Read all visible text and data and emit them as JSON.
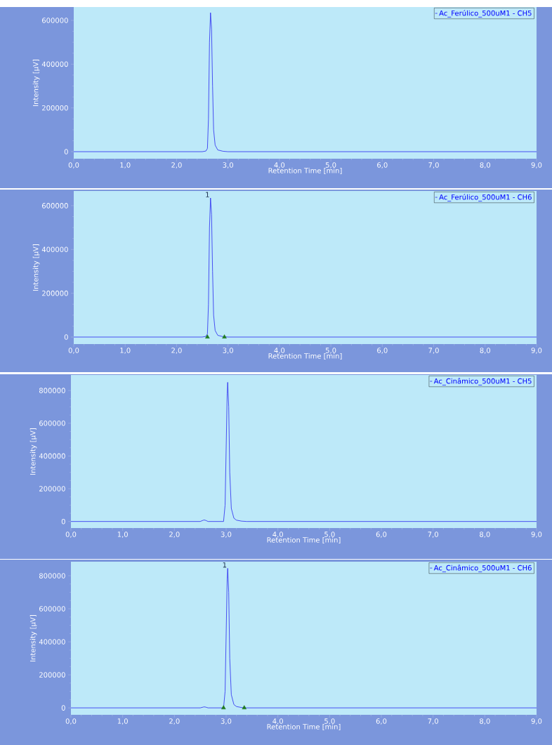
{
  "chart_data": [
    {
      "type": "line",
      "xlabel": "Retention Time [min]",
      "ylabel": "Intensity [µV]",
      "legend": "top right",
      "xlim": [
        0,
        9.0
      ],
      "ylim": [
        -32000,
        661000
      ],
      "xticks": [
        {
          "value": 0,
          "label": "0,0"
        },
        {
          "value": 1,
          "label": "1,0"
        },
        {
          "value": 2,
          "label": "2,0"
        },
        {
          "value": 3,
          "label": "3,0"
        },
        {
          "value": 4,
          "label": "4,0"
        },
        {
          "value": 5,
          "label": "5,0"
        },
        {
          "value": 6,
          "label": "6,0"
        },
        {
          "value": 7,
          "label": "7,0"
        },
        {
          "value": 8,
          "label": "8,0"
        },
        {
          "value": 9,
          "label": "9,0"
        }
      ],
      "yticks": [
        0,
        200000,
        400000,
        600000
      ],
      "series": [
        {
          "name": "Ac_Ferúlico_500uM1 - CH5",
          "color": "#2a2af0",
          "x": [
            0,
            2.5,
            2.57,
            2.6,
            2.62,
            2.64,
            2.66,
            2.68,
            2.7,
            2.72,
            2.75,
            2.8,
            2.9,
            3.0,
            9.0
          ],
          "values": [
            0,
            0,
            3000,
            15000,
            150000,
            500000,
            635000,
            560000,
            300000,
            100000,
            30000,
            8000,
            2000,
            0,
            0
          ]
        }
      ]
    },
    {
      "type": "line",
      "xlabel": "Retention Time [min]",
      "ylabel": "Intensity [µV]",
      "legend": "top right",
      "xlim": [
        0,
        9.0
      ],
      "ylim": [
        -32000,
        667000
      ],
      "xticks": [
        {
          "value": 0,
          "label": "0,0"
        },
        {
          "value": 1,
          "label": "1,0"
        },
        {
          "value": 2,
          "label": "2,0"
        },
        {
          "value": 3,
          "label": "3,0"
        },
        {
          "value": 4,
          "label": "4,0"
        },
        {
          "value": 5,
          "label": "5,0"
        },
        {
          "value": 6,
          "label": "6,0"
        },
        {
          "value": 7,
          "label": "7,0"
        },
        {
          "value": 8,
          "label": "8,0"
        },
        {
          "value": 9,
          "label": "9,0"
        }
      ],
      "yticks": [
        0,
        200000,
        400000,
        600000
      ],
      "annotations": [
        {
          "text": "1",
          "x": 2.66,
          "y": 635000
        }
      ],
      "series": [
        {
          "name": "Ac_Ferúlico_500uM1 - CH6",
          "color": "#2a2af0",
          "x": [
            0,
            2.5,
            2.57,
            2.6,
            2.62,
            2.64,
            2.66,
            2.68,
            2.7,
            2.72,
            2.75,
            2.8,
            2.9,
            3.0,
            9.0
          ],
          "values": [
            0,
            0,
            3000,
            15000,
            150000,
            500000,
            635000,
            560000,
            300000,
            100000,
            30000,
            8000,
            2000,
            0,
            0
          ]
        },
        {
          "type": "scatter",
          "marker": "triangle",
          "color": "#1e7a1e",
          "x": [
            2.6,
            2.93
          ],
          "values": [
            0,
            0
          ]
        }
      ]
    },
    {
      "type": "line",
      "xlabel": "Retention Time [min]",
      "ylabel": "Intensity [µV]",
      "legend": "top right",
      "xlim": [
        0,
        9.0
      ],
      "ylim": [
        -40000,
        895000
      ],
      "xticks": [
        {
          "value": 0,
          "label": "0,0"
        },
        {
          "value": 1,
          "label": "1,0"
        },
        {
          "value": 2,
          "label": "2,0"
        },
        {
          "value": 3,
          "label": "3,0"
        },
        {
          "value": 4,
          "label": "4,0"
        },
        {
          "value": 5,
          "label": "5,0"
        },
        {
          "value": 6,
          "label": "6,0"
        },
        {
          "value": 7,
          "label": "7,0"
        },
        {
          "value": 8,
          "label": "8,0"
        },
        {
          "value": 9,
          "label": "9,0"
        }
      ],
      "yticks": [
        0,
        200000,
        400000,
        600000,
        800000
      ],
      "series": [
        {
          "name": "Ac_Cinâmico_500uM1 - CH5",
          "color": "#2a2af0",
          "x": [
            0,
            2.5,
            2.56,
            2.58,
            2.61,
            2.65,
            2.95,
            2.98,
            3.02,
            3.03,
            3.05,
            3.07,
            3.1,
            3.15,
            3.2,
            3.3,
            3.4,
            9.0
          ],
          "values": [
            0,
            0,
            8000,
            9000,
            6000,
            0,
            0,
            100000,
            780000,
            850000,
            700000,
            300000,
            80000,
            20000,
            8000,
            2000,
            0,
            0
          ]
        }
      ]
    },
    {
      "type": "line",
      "xlabel": "Retention Time [min]",
      "ylabel": "Intensity [µV]",
      "legend": "top right",
      "xlim": [
        0,
        9.0
      ],
      "ylim": [
        -42000,
        885000
      ],
      "xticks": [
        {
          "value": 0,
          "label": "0,0"
        },
        {
          "value": 1,
          "label": "1,0"
        },
        {
          "value": 2,
          "label": "2,0"
        },
        {
          "value": 3,
          "label": "3,0"
        },
        {
          "value": 4,
          "label": "4,0"
        },
        {
          "value": 5,
          "label": "5,0"
        },
        {
          "value": 6,
          "label": "6,0"
        },
        {
          "value": 7,
          "label": "7,0"
        },
        {
          "value": 8,
          "label": "8,0"
        },
        {
          "value": 9,
          "label": "9,0"
        }
      ],
      "yticks": [
        0,
        200000,
        400000,
        600000,
        800000
      ],
      "annotations": [
        {
          "text": "1",
          "x": 3.03,
          "y": 845000
        }
      ],
      "series": [
        {
          "name": "Ac_Cinâmico_500uM1 - CH6",
          "color": "#2a2af0",
          "x": [
            0,
            2.5,
            2.56,
            2.58,
            2.61,
            2.65,
            2.95,
            2.98,
            3.02,
            3.03,
            3.05,
            3.07,
            3.1,
            3.15,
            3.2,
            3.3,
            3.4,
            9.0
          ],
          "values": [
            0,
            0,
            5000,
            6000,
            4000,
            0,
            0,
            100000,
            780000,
            845000,
            700000,
            300000,
            80000,
            20000,
            8000,
            2000,
            0,
            0
          ]
        },
        {
          "type": "scatter",
          "marker": "triangle",
          "color": "#1e7a1e",
          "x": [
            2.95,
            3.35
          ],
          "values": [
            0,
            0
          ]
        }
      ]
    }
  ]
}
